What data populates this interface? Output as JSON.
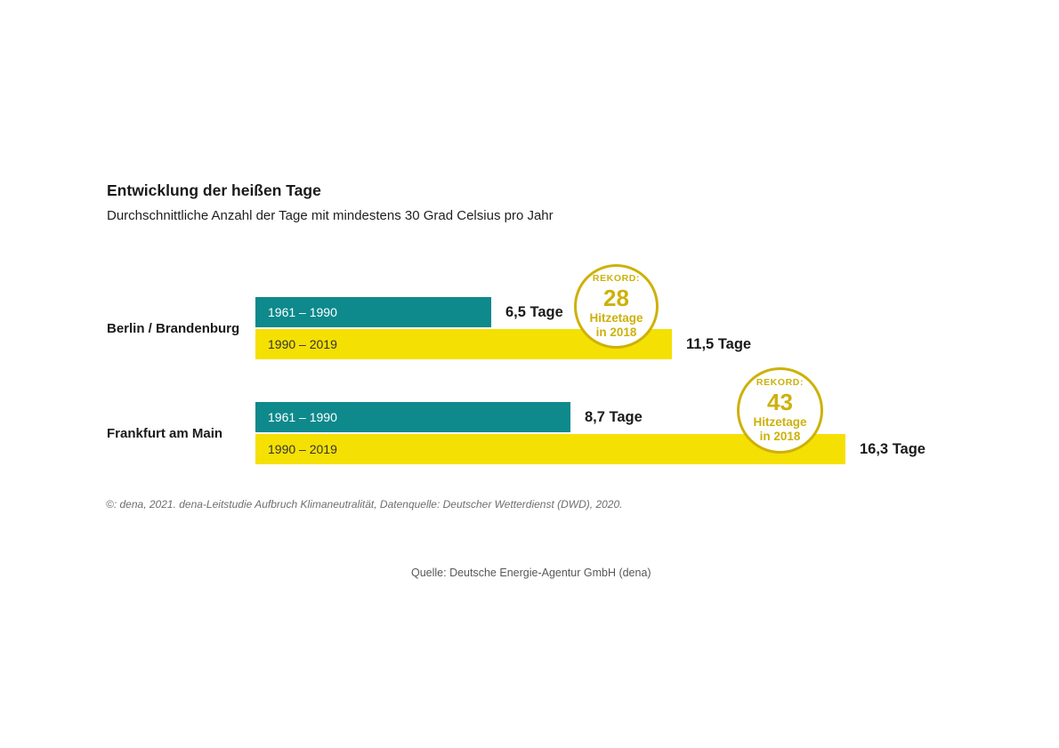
{
  "header": {
    "title": "Entwicklung der heißen Tage",
    "subtitle": "Durchschnittliche Anzahl der Tage mit mindestens 30 Grad Celsius pro Jahr"
  },
  "chart_data": {
    "type": "bar",
    "orientation": "horizontal",
    "unit": "Tage",
    "categories": [
      "Berlin / Brandenburg",
      "Frankfurt am Main"
    ],
    "series": [
      {
        "name": "1961 – 1990",
        "values": [
          6.5,
          8.7
        ],
        "color": "#0E898C",
        "label_color": "#FFFFFF"
      },
      {
        "name": "1990 – 2019",
        "values": [
          11.5,
          16.3
        ],
        "color": "#F5E003",
        "label_color": "#333333"
      }
    ],
    "value_labels": [
      [
        "6,5 Tage",
        "8,7 Tage"
      ],
      [
        "11,5 Tage",
        "16,3 Tage"
      ]
    ],
    "annotations": [
      {
        "category": "Berlin / Brandenburg",
        "label": "REKORD:",
        "value": "28",
        "line1": "Hitzetage",
        "line2": "in 2018"
      },
      {
        "category": "Frankfurt am Main",
        "label": "REKORD:",
        "value": "43",
        "line1": "Hitzetage",
        "line2": "in 2018"
      }
    ],
    "xlim": [
      0,
      17
    ],
    "grid": false,
    "legend": "labels-inside-bars"
  },
  "theme": {
    "teal": "#0E898C",
    "yellow": "#F5E003",
    "gold": "#CDB10A",
    "text": "#1A1A1A",
    "muted": "#6E6E6E"
  },
  "footer": {
    "copyright": "©: dena, 2021. dena-Leitstudie Aufbruch Klimaneutralität, Datenquelle: Deutscher Wetterdienst (DWD), 2020.",
    "source_caption": "Quelle: Deutsche Energie-Agentur GmbH (dena)"
  }
}
